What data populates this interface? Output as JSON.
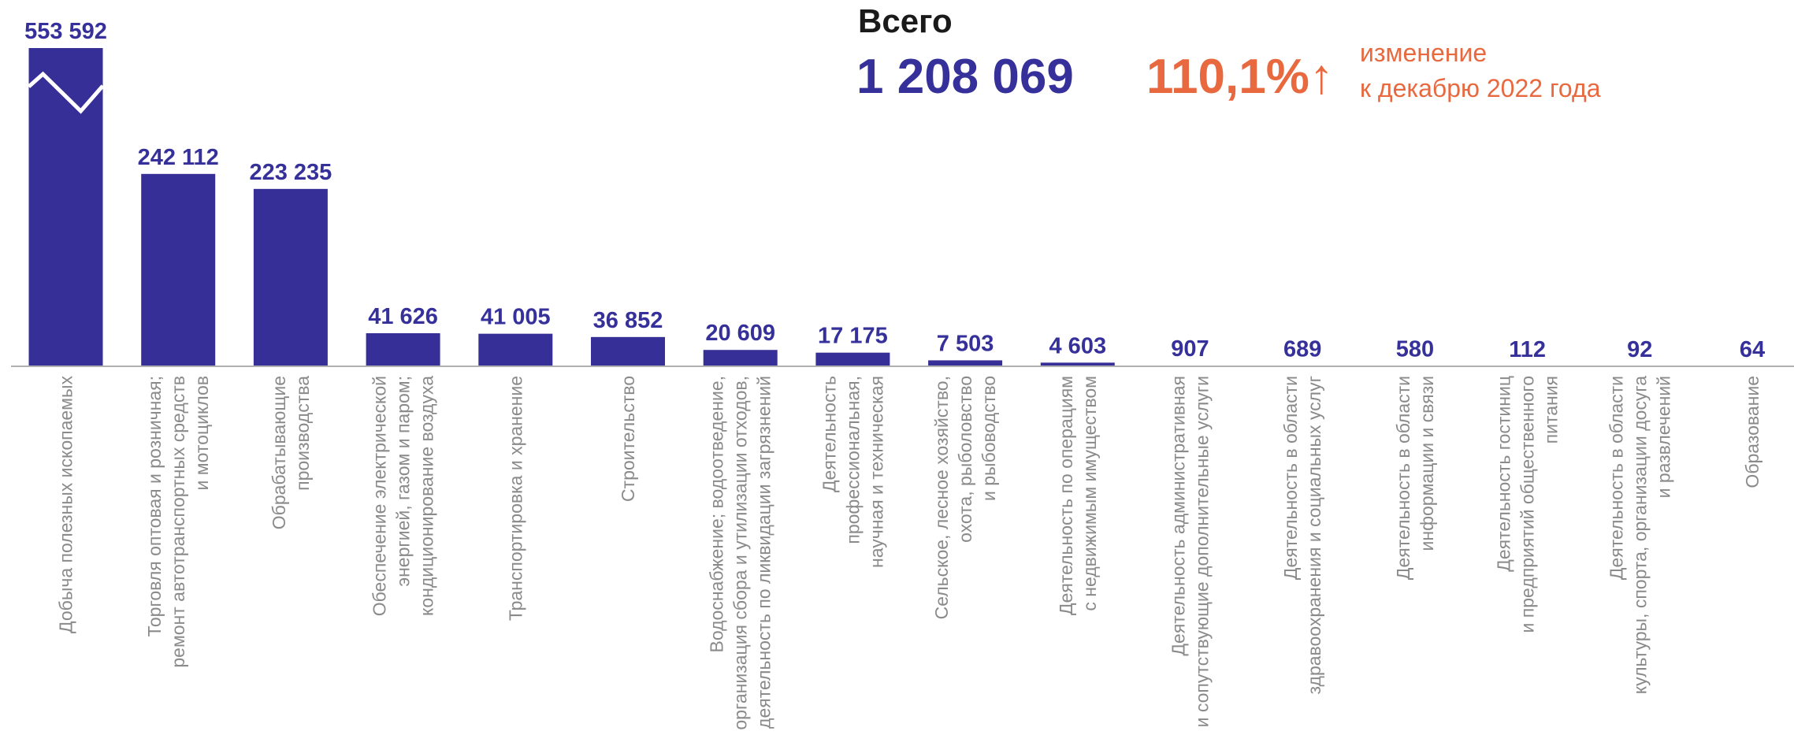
{
  "chart_data": {
    "type": "bar",
    "total_label": "Всего",
    "total": "1 208 069",
    "change": "110,1%↑",
    "change_note": [
      "изменение",
      "к декабрю 2022 года"
    ],
    "color": "#372f98",
    "categories": [
      [
        "Добыча полезных ископаемых"
      ],
      [
        "Торговля оптовая и розничная;",
        "ремонт автотранспортных средств",
        "и мотоциклов"
      ],
      [
        "Обрабатывающие",
        "производства"
      ],
      [
        "Обеспечение электрической",
        "энергией, газом и паром;",
        "кондиционирование воздуха"
      ],
      [
        "Транспортировка и хранение"
      ],
      [
        "Строительство"
      ],
      [
        "Водоснабжение; водоотведение,",
        "организация сбора и утилизации отходов,",
        "деятельность по ликвидации загрязнений"
      ],
      [
        "Деятельность",
        "профессиональная,",
        "научная и техническая"
      ],
      [
        "Сельское, лесное хозяйство,",
        "охота, рыболовство",
        "и рыбоводство"
      ],
      [
        "Деятельность по операциям",
        "с недвижимым имуществом"
      ],
      [
        "Деятельность административная",
        "и сопутствующие дополнительные услуги"
      ],
      [
        "Деятельность в области",
        "здравоохранения и социальных услуг"
      ],
      [
        "Деятельность в области",
        "информации и связи"
      ],
      [
        "Деятельность  гостиниц",
        "и предприятий общественного",
        "питания"
      ],
      [
        "Деятельность в области",
        "культуры, спорта, организации досуга",
        "и развлечений"
      ],
      [
        "Образование"
      ]
    ],
    "values": [
      553592,
      242112,
      223235,
      41626,
      41005,
      36852,
      20609,
      17175,
      7503,
      4603,
      907,
      689,
      580,
      112,
      92,
      64
    ],
    "value_labels": [
      "553 592",
      "242 112",
      "223 235",
      "41 626",
      "41 005",
      "36 852",
      "20 609",
      "17 175",
      "7 503",
      "4 603",
      "907",
      "689",
      "580",
      "112",
      "92",
      "64"
    ],
    "ylim": [
      0,
      461000
    ],
    "axis_break": true
  }
}
